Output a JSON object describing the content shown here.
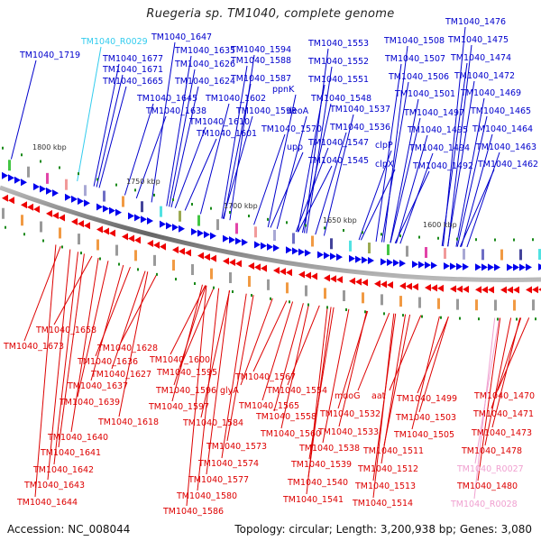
{
  "title": "Ruegeria sp. TM1040, complete genome",
  "footer": {
    "accession": "Accession: NC_008044",
    "summary": "Topology: circular; Length: 3,200,938 bp; Genes: 3,080"
  },
  "colors": {
    "forward_label": "#0000cc",
    "reverse_label": "#dd0000",
    "rna_forward": "#33ccee",
    "rna_reverse": "#f0a0d0",
    "forward_arrow": "#0000ee",
    "reverse_arrow": "#ee0000",
    "backbone": "#777777",
    "marker": "#1a8a1a"
  },
  "ticks": [
    "1800 kbp",
    "1750 kbp",
    "1700 kbp",
    "1650 kbp",
    "1600 kbp"
  ],
  "forward_labels": [
    {
      "text": "TM1040_1719",
      "type": "gene"
    },
    {
      "text": "TM1040_R0029",
      "type": "rna"
    },
    {
      "text": "TM1040_1647",
      "type": "gene"
    },
    {
      "text": "TM1040_1677",
      "type": "gene"
    },
    {
      "text": "TM1040_1671",
      "type": "gene"
    },
    {
      "text": "TM1040_1665",
      "type": "gene"
    },
    {
      "text": "TM1040_1635",
      "type": "gene"
    },
    {
      "text": "TM1040_1626",
      "type": "gene"
    },
    {
      "text": "TM1040_1624",
      "type": "gene"
    },
    {
      "text": "TM1040_1645",
      "type": "gene"
    },
    {
      "text": "TM1040_1638",
      "type": "gene"
    },
    {
      "text": "TM1040_1602",
      "type": "gene"
    },
    {
      "text": "TM1040_1610",
      "type": "gene"
    },
    {
      "text": "TM1040_1601",
      "type": "gene"
    },
    {
      "text": "TM1040_1594",
      "type": "gene"
    },
    {
      "text": "TM1040_1588",
      "type": "gene"
    },
    {
      "text": "TM1040_1587",
      "type": "gene"
    },
    {
      "text": "ppnK",
      "type": "gene"
    },
    {
      "text": "TM1040_1593",
      "type": "gene"
    },
    {
      "text": "deoA",
      "type": "gene"
    },
    {
      "text": "TM1040_1570",
      "type": "gene"
    },
    {
      "text": "upp",
      "type": "gene"
    },
    {
      "text": "TM1040_1553",
      "type": "gene"
    },
    {
      "text": "TM1040_1552",
      "type": "gene"
    },
    {
      "text": "TM1040_1551",
      "type": "gene"
    },
    {
      "text": "TM1040_1548",
      "type": "gene"
    },
    {
      "text": "TM1040_1537",
      "type": "gene"
    },
    {
      "text": "TM1040_1536",
      "type": "gene"
    },
    {
      "text": "TM1040_1547",
      "type": "gene"
    },
    {
      "text": "TM1040_1545",
      "type": "gene"
    },
    {
      "text": "clpP",
      "type": "gene"
    },
    {
      "text": "clpX",
      "type": "gene"
    },
    {
      "text": "TM1040_1508",
      "type": "gene"
    },
    {
      "text": "TM1040_1507",
      "type": "gene"
    },
    {
      "text": "TM1040_1506",
      "type": "gene"
    },
    {
      "text": "TM1040_1501",
      "type": "gene"
    },
    {
      "text": "TM1040_1497",
      "type": "gene"
    },
    {
      "text": "TM1040_1495",
      "type": "gene"
    },
    {
      "text": "TM1040_1494",
      "type": "gene"
    },
    {
      "text": "TM1040_1492",
      "type": "gene"
    },
    {
      "text": "TM1040_1476",
      "type": "gene"
    },
    {
      "text": "TM1040_1475",
      "type": "gene"
    },
    {
      "text": "TM1040_1474",
      "type": "gene"
    },
    {
      "text": "TM1040_1472",
      "type": "gene"
    },
    {
      "text": "TM1040_1469",
      "type": "gene"
    },
    {
      "text": "TM1040_1465",
      "type": "gene"
    },
    {
      "text": "TM1040_1464",
      "type": "gene"
    },
    {
      "text": "TM1040_1463",
      "type": "gene"
    },
    {
      "text": "TM1040_1462",
      "type": "gene"
    }
  ],
  "reverse_labels": [
    {
      "text": "TM1040_1658",
      "type": "gene"
    },
    {
      "text": "TM1040_1673",
      "type": "gene"
    },
    {
      "text": "TM1040_1628",
      "type": "gene"
    },
    {
      "text": "TM1040_1636",
      "type": "gene"
    },
    {
      "text": "TM1040_1627",
      "type": "gene"
    },
    {
      "text": "TM1040_1637",
      "type": "gene"
    },
    {
      "text": "TM1040_1639",
      "type": "gene"
    },
    {
      "text": "TM1040_1618",
      "type": "gene"
    },
    {
      "text": "TM1040_1640",
      "type": "gene"
    },
    {
      "text": "TM1040_1641",
      "type": "gene"
    },
    {
      "text": "TM1040_1642",
      "type": "gene"
    },
    {
      "text": "TM1040_1643",
      "type": "gene"
    },
    {
      "text": "TM1040_1644",
      "type": "gene"
    },
    {
      "text": "TM1040_1600",
      "type": "gene"
    },
    {
      "text": "TM1040_1595",
      "type": "gene"
    },
    {
      "text": "TM1040_1596",
      "type": "gene"
    },
    {
      "text": "glyA",
      "type": "gene"
    },
    {
      "text": "TM1040_1597",
      "type": "gene"
    },
    {
      "text": "TM1040_1584",
      "type": "gene"
    },
    {
      "text": "TM1040_1573",
      "type": "gene"
    },
    {
      "text": "TM1040_1574",
      "type": "gene"
    },
    {
      "text": "TM1040_1577",
      "type": "gene"
    },
    {
      "text": "TM1040_1580",
      "type": "gene"
    },
    {
      "text": "TM1040_1586",
      "type": "gene"
    },
    {
      "text": "TM1040_1567",
      "type": "gene"
    },
    {
      "text": "TM1040_1554",
      "type": "gene"
    },
    {
      "text": "TM1040_1565",
      "type": "gene"
    },
    {
      "text": "TM1040_1558",
      "type": "gene"
    },
    {
      "text": "TM1040_1560",
      "type": "gene"
    },
    {
      "text": "mdoG",
      "type": "gene"
    },
    {
      "text": "TM1040_1532",
      "type": "gene"
    },
    {
      "text": "TM1040_1533",
      "type": "gene"
    },
    {
      "text": "TM1040_1538",
      "type": "gene"
    },
    {
      "text": "TM1040_1539",
      "type": "gene"
    },
    {
      "text": "TM1040_1540",
      "type": "gene"
    },
    {
      "text": "TM1040_1541",
      "type": "gene"
    },
    {
      "text": "aat",
      "type": "gene"
    },
    {
      "text": "TM1040_1499",
      "type": "gene"
    },
    {
      "text": "TM1040_1503",
      "type": "gene"
    },
    {
      "text": "TM1040_1505",
      "type": "gene"
    },
    {
      "text": "TM1040_1511",
      "type": "gene"
    },
    {
      "text": "TM1040_1512",
      "type": "gene"
    },
    {
      "text": "TM1040_1513",
      "type": "gene"
    },
    {
      "text": "TM1040_1514",
      "type": "gene"
    },
    {
      "text": "TM1040_1470",
      "type": "gene"
    },
    {
      "text": "TM1040_1471",
      "type": "gene"
    },
    {
      "text": "TM1040_1473",
      "type": "gene"
    },
    {
      "text": "TM1040_1478",
      "type": "gene"
    },
    {
      "text": "TM1040_R0027",
      "type": "rna"
    },
    {
      "text": "TM1040_1480",
      "type": "gene"
    },
    {
      "text": "TM1040_R0028",
      "type": "rna"
    }
  ]
}
